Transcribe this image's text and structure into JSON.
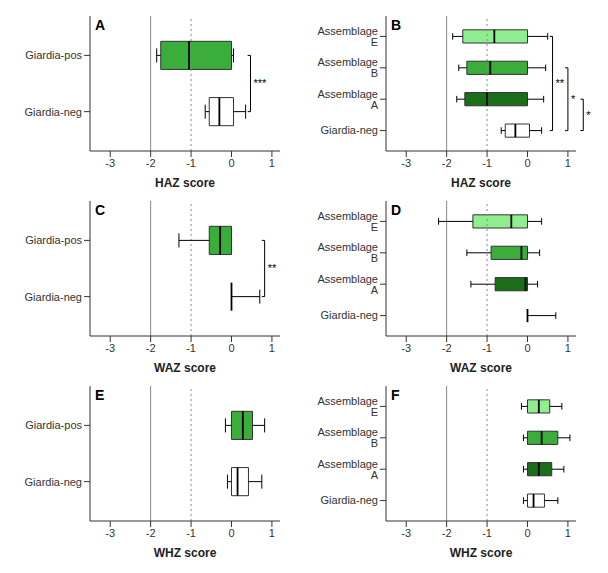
{
  "chart_data": [
    {
      "type": "box",
      "orientation": "horizontal",
      "title": "A",
      "categories": [
        "Giardia-pos",
        "Giardia-neg"
      ],
      "medians": [
        -1.05,
        -0.3
      ],
      "q1": [
        -1.75,
        -0.55
      ],
      "q3": [
        0.0,
        0.05
      ],
      "whisker_low": [
        -1.85,
        -0.65
      ],
      "whisker_high": [
        0.05,
        0.35
      ],
      "colors": [
        "#3aad3a",
        "#ffffff"
      ],
      "xlabel": "HAZ  score",
      "xlim": [
        -3.5,
        1.2
      ],
      "xticks": [
        -3,
        -2,
        -1,
        0,
        1
      ],
      "reference_lines": [
        {
          "value": -2.0,
          "line_style": "solid"
        },
        {
          "value": -1.0,
          "line_style": "dotted"
        }
      ],
      "brackets": [
        {
          "label": "***",
          "from": "Giardia-pos",
          "to": "Giardia-neg"
        }
      ]
    },
    {
      "type": "box",
      "orientation": "horizontal",
      "title": "B",
      "categories": [
        "Assemblage E",
        "Assemblage B",
        "Assemblage A",
        "Giardia-neg"
      ],
      "medians": [
        -0.82,
        -0.92,
        -1.0,
        -0.3
      ],
      "q1": [
        -1.6,
        -1.5,
        -1.55,
        -0.55
      ],
      "q3": [
        0.0,
        0.0,
        0.0,
        0.05
      ],
      "whisker_low": [
        -1.85,
        -1.7,
        -1.75,
        -0.65
      ],
      "whisker_high": [
        0.5,
        0.45,
        0.4,
        0.35
      ],
      "colors": [
        "#90ee90",
        "#3aad3a",
        "#1a6e1a",
        "#ffffff"
      ],
      "xlabel": "HAZ  score",
      "xlim": [
        -3.5,
        1.2
      ],
      "xticks": [
        -3,
        -2,
        -1,
        0,
        1
      ],
      "reference_lines": [
        {
          "value": -2.0,
          "line_style": "solid"
        },
        {
          "value": -1.0,
          "line_style": "dotted"
        }
      ],
      "brackets": [
        {
          "label": "**",
          "from": "Assemblage E",
          "to": "Giardia-neg"
        },
        {
          "label": "*",
          "from": "Assemblage B",
          "to": "Giardia-neg"
        },
        {
          "label": "*",
          "from": "Assemblage A",
          "to": "Giardia-neg"
        }
      ]
    },
    {
      "type": "box",
      "orientation": "horizontal",
      "title": "C",
      "categories": [
        "Giardia-pos",
        "Giardia-neg"
      ],
      "medians": [
        -0.28,
        0.0
      ],
      "q1": [
        -0.55,
        0.0
      ],
      "q3": [
        0.0,
        0.0
      ],
      "whisker_low": [
        -1.3,
        0.0
      ],
      "whisker_high": [
        -0.2,
        0.7
      ],
      "colors": [
        "#3aad3a",
        "#ffffff"
      ],
      "xlabel": "WAZ  score",
      "xlim": [
        -3.5,
        1.2
      ],
      "xticks": [
        -3,
        -2,
        -1,
        0,
        1
      ],
      "reference_lines": [
        {
          "value": -2.0,
          "line_style": "solid"
        },
        {
          "value": -1.0,
          "line_style": "dotted"
        }
      ],
      "brackets": [
        {
          "label": "**",
          "from": "Giardia-pos",
          "to": "Giardia-neg"
        }
      ]
    },
    {
      "type": "box",
      "orientation": "horizontal",
      "title": "D",
      "categories": [
        "Assemblage E",
        "Assemblage B",
        "Assemblage A",
        "Giardia-neg"
      ],
      "medians": [
        -0.4,
        -0.15,
        -0.05,
        0.0
      ],
      "q1": [
        -1.35,
        -0.9,
        -0.8,
        0.0
      ],
      "q3": [
        0.0,
        0.0,
        0.0,
        0.0
      ],
      "whisker_low": [
        -2.2,
        -1.5,
        -1.4,
        0.0
      ],
      "whisker_high": [
        0.35,
        0.3,
        0.25,
        0.7
      ],
      "colors": [
        "#90ee90",
        "#3aad3a",
        "#1a6e1a",
        "#ffffff"
      ],
      "xlabel": "WAZ  score",
      "xlim": [
        -3.5,
        1.2
      ],
      "xticks": [
        -3,
        -2,
        -1,
        0,
        1
      ],
      "reference_lines": [
        {
          "value": -2.0,
          "line_style": "solid"
        },
        {
          "value": -1.0,
          "line_style": "dotted"
        }
      ],
      "brackets": []
    },
    {
      "type": "box",
      "orientation": "horizontal",
      "title": "E",
      "categories": [
        "Giardia-pos",
        "Giardia-neg"
      ],
      "medians": [
        0.28,
        0.15
      ],
      "q1": [
        0.0,
        0.0
      ],
      "q3": [
        0.52,
        0.42
      ],
      "whisker_low": [
        -0.15,
        -0.1
      ],
      "whisker_high": [
        0.82,
        0.75
      ],
      "colors": [
        "#3aad3a",
        "#ffffff"
      ],
      "xlabel": "WHZ  score",
      "xlim": [
        -3.5,
        1.2
      ],
      "xticks": [
        -3,
        -2,
        -1,
        0,
        1
      ],
      "reference_lines": [
        {
          "value": -2.0,
          "line_style": "solid"
        },
        {
          "value": -1.0,
          "line_style": "dotted"
        }
      ],
      "brackets": []
    },
    {
      "type": "box",
      "orientation": "horizontal",
      "title": "F",
      "categories": [
        "Assemblage E",
        "Assemblage B",
        "Assemblage A",
        "Giardia-neg"
      ],
      "medians": [
        0.28,
        0.35,
        0.28,
        0.15
      ],
      "q1": [
        0.0,
        0.0,
        0.0,
        0.0
      ],
      "q3": [
        0.55,
        0.75,
        0.6,
        0.42
      ],
      "whisker_low": [
        -0.15,
        -0.1,
        -0.1,
        -0.1
      ],
      "whisker_high": [
        0.85,
        1.05,
        0.9,
        0.75
      ],
      "colors": [
        "#90ee90",
        "#3aad3a",
        "#1a6e1a",
        "#ffffff"
      ],
      "xlabel": "WHZ  score",
      "xlim": [
        -3.5,
        1.2
      ],
      "xticks": [
        -3,
        -2,
        -1,
        0,
        1
      ],
      "reference_lines": [
        {
          "value": -2.0,
          "line_style": "solid"
        },
        {
          "value": -1.0,
          "line_style": "dotted"
        }
      ],
      "brackets": []
    }
  ]
}
